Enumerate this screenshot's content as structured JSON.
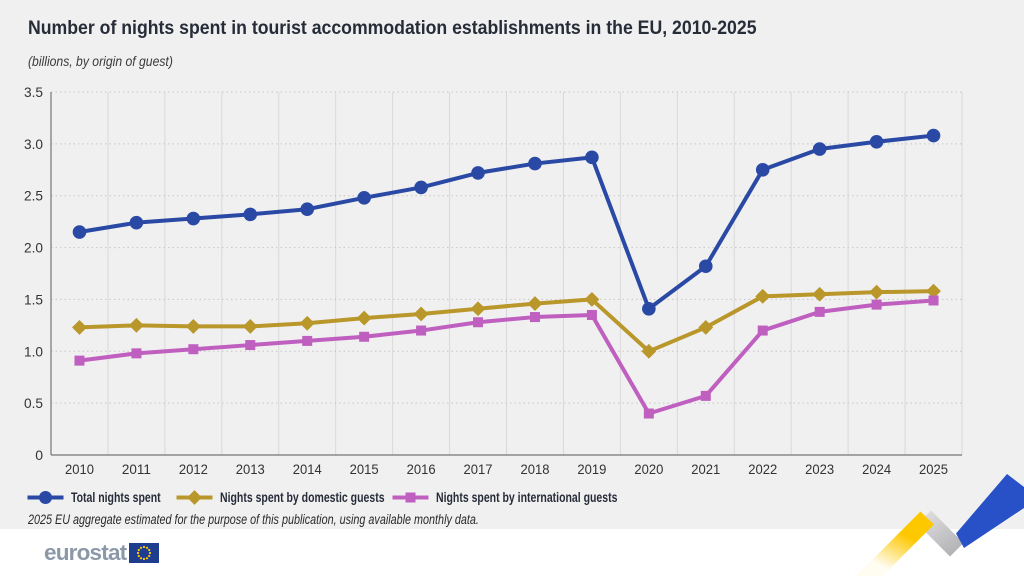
{
  "title": "Number of nights spent in tourist accommodation establishments in the EU, 2010-2025",
  "subtitle": "(billions, by origin of guest)",
  "footnote": "2025 EU aggregate estimated for the purpose of this publication, using available monthly data.",
  "logo_text": "eurostat",
  "colors": {
    "panel_background": "#f0f0f0",
    "page_background": "#ffffff",
    "title_text": "#272c39",
    "axis_text": "#333333",
    "axis_line": "#757575",
    "grid_vertical": "#d9d9d9",
    "grid_horizontal": "#c6c6c6",
    "series_total": "#2a49a5",
    "series_domestic": "#b9972b",
    "series_international": "#bf5fbf",
    "logo_text_color": "#8b98a8",
    "flag_blue": "#1f3d8f",
    "star_yellow": "#ffcc00",
    "ribbon_yellow": "#fdc800",
    "ribbon_blue": "#2851c7",
    "ribbon_gray_light": "#dcdcdc",
    "ribbon_gray_dark": "#b2b2b6"
  },
  "chart_data": {
    "type": "line",
    "title": "Number of nights spent in tourist accommodation establishments in the EU, 2010-2025",
    "subtitle": "(billions, by origin of guest)",
    "categories": [
      "2010",
      "2011",
      "2012",
      "2013",
      "2014",
      "2015",
      "2016",
      "2017",
      "2018",
      "2019",
      "2020",
      "2021",
      "2022",
      "2023",
      "2024",
      "2025"
    ],
    "series": [
      {
        "name": "Total nights spent",
        "marker": "circle",
        "color": "#2a49a5",
        "values": [
          2.15,
          2.24,
          2.28,
          2.32,
          2.37,
          2.48,
          2.58,
          2.72,
          2.81,
          2.87,
          1.41,
          1.82,
          2.75,
          2.95,
          3.02,
          3.08
        ]
      },
      {
        "name": "Nights spent by domestic guests",
        "marker": "diamond",
        "color": "#b9972b",
        "values": [
          1.23,
          1.25,
          1.24,
          1.24,
          1.27,
          1.32,
          1.36,
          1.41,
          1.46,
          1.5,
          1.0,
          1.23,
          1.53,
          1.55,
          1.57,
          1.58
        ]
      },
      {
        "name": "Nights spent by international guests",
        "marker": "square",
        "color": "#bf5fbf",
        "values": [
          0.91,
          0.98,
          1.02,
          1.06,
          1.1,
          1.14,
          1.2,
          1.28,
          1.33,
          1.35,
          0.4,
          0.57,
          1.2,
          1.38,
          1.45,
          1.49
        ]
      }
    ],
    "ylim": [
      0,
      3.5
    ],
    "ytick_step": 0.5,
    "grid": "vertical solid, horizontal dotted",
    "legend_position": "bottom-left"
  }
}
